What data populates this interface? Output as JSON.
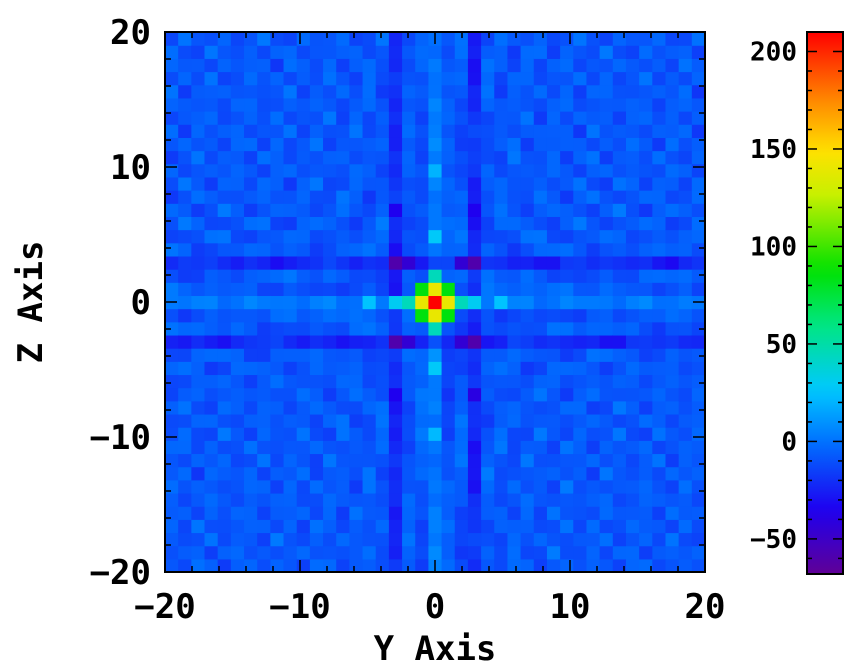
{
  "chart_data": {
    "type": "heatmap",
    "title": "",
    "xlabel": "Y Axis",
    "ylabel": "Z Axis",
    "xlim": [
      -20,
      20
    ],
    "ylim": [
      -20,
      20
    ],
    "x_ticks": [
      -20,
      -10,
      0,
      10,
      20
    ],
    "y_ticks": [
      -20,
      -10,
      0,
      10,
      20
    ],
    "x_tick_labels": [
      "−20",
      "−10",
      "0",
      "10",
      "20"
    ],
    "y_tick_labels": [
      "−20",
      "−10",
      "0",
      "10",
      "20"
    ],
    "grid": false,
    "colorbar": {
      "range": [
        -68,
        210
      ],
      "ticks": [
        -50,
        0,
        50,
        100,
        150,
        200
      ],
      "tick_labels": [
        "−50",
        "0",
        "50",
        "100",
        "150",
        "200"
      ],
      "colormap": "rainbow (purple-blue-cyan-green-yellow-orange-red)"
    },
    "grid_size": [
      41,
      41
    ],
    "cell_spacing": 1,
    "background_level": -8,
    "features": [
      {
        "y": 0,
        "z": 0,
        "value": 210
      },
      {
        "y": 1,
        "z": 0,
        "value": 140
      },
      {
        "y": -1,
        "z": 0,
        "value": 140
      },
      {
        "y": 0,
        "z": 1,
        "value": 140
      },
      {
        "y": 0,
        "z": -1,
        "value": 140
      },
      {
        "y": 1,
        "z": 1,
        "value": 85
      },
      {
        "y": -1,
        "z": 1,
        "value": 85
      },
      {
        "y": 1,
        "z": -1,
        "value": 85
      },
      {
        "y": -1,
        "z": -1,
        "value": 85
      },
      {
        "y": 2,
        "z": 0,
        "value": 45
      },
      {
        "y": -2,
        "z": 0,
        "value": 45
      },
      {
        "y": 0,
        "z": 2,
        "value": 45
      },
      {
        "y": 0,
        "z": -2,
        "value": 45
      },
      {
        "y": 3,
        "z": 0,
        "value": 30
      },
      {
        "y": -3,
        "z": 0,
        "value": 30
      },
      {
        "y": 5,
        "z": 0,
        "value": 25
      },
      {
        "y": -5,
        "z": 0,
        "value": 25
      },
      {
        "y": 0,
        "z": 5,
        "value": 28
      },
      {
        "y": 0,
        "z": -5,
        "value": 28
      },
      {
        "y": 0,
        "z": 10,
        "value": 20
      },
      {
        "y": 0,
        "z": -10,
        "value": 22
      },
      {
        "y": -3,
        "z": 3,
        "value": -60
      },
      {
        "y": 3,
        "z": 3,
        "value": -60
      },
      {
        "y": -3,
        "z": -3,
        "value": -60
      },
      {
        "y": 3,
        "z": -3,
        "value": -60
      },
      {
        "y": -2,
        "z": 3,
        "value": -45
      },
      {
        "y": 2,
        "z": 3,
        "value": -45
      },
      {
        "y": -2,
        "z": -3,
        "value": -45
      },
      {
        "y": 2,
        "z": -3,
        "value": -45
      },
      {
        "y": 0,
        "z": -4,
        "value": 10
      },
      {
        "y": 3,
        "z": -7,
        "value": -40
      },
      {
        "y": -3,
        "z": -7,
        "value": -35
      },
      {
        "y": 3,
        "z": 7,
        "value": -35
      },
      {
        "y": -3,
        "z": 7,
        "value": -35
      }
    ]
  }
}
